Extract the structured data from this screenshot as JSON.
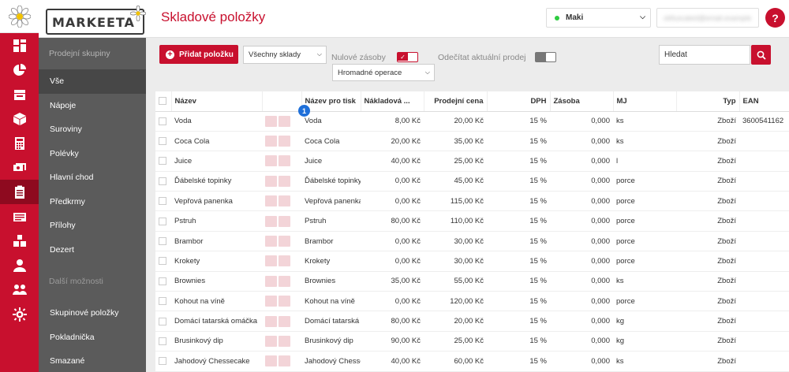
{
  "rail": {
    "icons": [
      "dashboard-icon",
      "pie-chart-icon",
      "inbox-icon",
      "box-icon",
      "calculator-icon",
      "money-icon",
      "clipboard-icon",
      "receipt-icon",
      "boxes-icon",
      "users-icon",
      "team-icon",
      "settings-icon"
    ],
    "active_index": 6
  },
  "brand": {
    "name": "MARKEETA"
  },
  "header": {
    "title": "Skladové položky",
    "user_name": "Maki",
    "email_masked": "obfuscated@email.example",
    "help_label": "?"
  },
  "sidebar": {
    "group_title": "Prodejní skupiny",
    "items": [
      {
        "label": "Vše",
        "active": true
      },
      {
        "label": "Nápoje"
      },
      {
        "label": "Suroviny"
      },
      {
        "label": "Polévky"
      },
      {
        "label": "Hlavní chod"
      },
      {
        "label": "Předkrmy"
      },
      {
        "label": "Přílohy"
      },
      {
        "label": "Dezert"
      }
    ],
    "more_title": "Další možnosti",
    "more_items": [
      {
        "label": "Skupinové položky"
      },
      {
        "label": "Pokladnička"
      },
      {
        "label": "Smazané"
      }
    ]
  },
  "toolbar": {
    "add_label": "Přidat položku",
    "warehouse_value": "Všechny sklady",
    "zero_stock_label": "Nulové zásoby",
    "deduct_label": "Odečítat aktuální prodej",
    "bulk_value": "Hromadné operace",
    "search_placeholder": "Hledat"
  },
  "badge": "1",
  "table": {
    "headers": {
      "name": "Název",
      "print_name": "Název pro tisk",
      "cost": "Nákladová ...",
      "price": "Prodejní cena",
      "vat": "DPH",
      "stock": "Zásoba",
      "unit": "MJ",
      "type": "Typ",
      "ean": "EAN"
    },
    "rows": [
      {
        "name": "Voda",
        "print_name": "Voda",
        "cost": "8,00 Kč",
        "price": "20,00 Kč",
        "vat": "15 %",
        "stock": "0,000",
        "unit": "ks",
        "type": "Zboží",
        "ean": "3600541162"
      },
      {
        "name": "Coca Cola",
        "print_name": "Coca Cola",
        "cost": "20,00 Kč",
        "price": "35,00 Kč",
        "vat": "15 %",
        "stock": "0,000",
        "unit": "ks",
        "type": "Zboží",
        "ean": ""
      },
      {
        "name": "Juice",
        "print_name": "Juice",
        "cost": "40,00 Kč",
        "price": "25,00 Kč",
        "vat": "15 %",
        "stock": "0,000",
        "unit": "l",
        "type": "Zboží",
        "ean": ""
      },
      {
        "name": "Ďábelské topinky",
        "print_name": "Ďábelské topinky",
        "cost": "0,00 Kč",
        "price": "45,00 Kč",
        "vat": "15 %",
        "stock": "0,000",
        "unit": "porce",
        "type": "Zboží",
        "ean": ""
      },
      {
        "name": "Vepřová panenka",
        "print_name": "Vepřová panenka",
        "cost": "0,00 Kč",
        "price": "115,00 Kč",
        "vat": "15 %",
        "stock": "0,000",
        "unit": "porce",
        "type": "Zboží",
        "ean": ""
      },
      {
        "name": "Pstruh",
        "print_name": "Pstruh",
        "cost": "80,00 Kč",
        "price": "110,00 Kč",
        "vat": "15 %",
        "stock": "0,000",
        "unit": "porce",
        "type": "Zboží",
        "ean": ""
      },
      {
        "name": "Brambor",
        "print_name": "Brambor",
        "cost": "0,00 Kč",
        "price": "30,00 Kč",
        "vat": "15 %",
        "stock": "0,000",
        "unit": "porce",
        "type": "Zboží",
        "ean": ""
      },
      {
        "name": "Krokety",
        "print_name": "Krokety",
        "cost": "0,00 Kč",
        "price": "30,00 Kč",
        "vat": "15 %",
        "stock": "0,000",
        "unit": "porce",
        "type": "Zboží",
        "ean": ""
      },
      {
        "name": "Brownies",
        "print_name": "Brownies",
        "cost": "35,00 Kč",
        "price": "55,00 Kč",
        "vat": "15 %",
        "stock": "0,000",
        "unit": "ks",
        "type": "Zboží",
        "ean": ""
      },
      {
        "name": "Kohout na víně",
        "print_name": "Kohout na víně",
        "cost": "0,00 Kč",
        "price": "120,00 Kč",
        "vat": "15 %",
        "stock": "0,000",
        "unit": "porce",
        "type": "Zboží",
        "ean": ""
      },
      {
        "name": "Domácí tatarská omáčka",
        "print_name": "Domácí tatarská o",
        "cost": "80,00 Kč",
        "price": "20,00 Kč",
        "vat": "15 %",
        "stock": "0,000",
        "unit": "kg",
        "type": "Zboží",
        "ean": ""
      },
      {
        "name": "Brusinkový dip",
        "print_name": "Brusinkový dip",
        "cost": "90,00 Kč",
        "price": "25,00 Kč",
        "vat": "15 %",
        "stock": "0,000",
        "unit": "kg",
        "type": "Zboží",
        "ean": ""
      },
      {
        "name": "Jahodový Chessecake",
        "print_name": "Jahodový Chessec",
        "cost": "40,00 Kč",
        "price": "60,00 Kč",
        "vat": "15 %",
        "stock": "0,000",
        "unit": "ks",
        "type": "Zboží",
        "ean": ""
      }
    ]
  },
  "colors": {
    "brand_red": "#c8102e",
    "sidebar_bg": "#5b5b5b",
    "badge_blue": "#1e6fd9"
  }
}
